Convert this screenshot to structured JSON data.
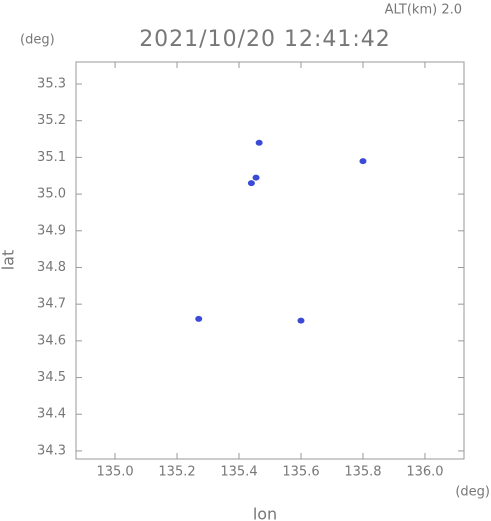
{
  "chart_data": {
    "type": "scatter",
    "title": "2021/10/20 12:41:42",
    "annotation": "ALT(km) 2.0",
    "y_unit": "(deg)",
    "x_unit": "(deg)",
    "xlabel": "lon",
    "ylabel": "lat",
    "color": "#3a4ad6",
    "x": [
      135.465,
      135.455,
      135.44,
      135.8,
      135.27,
      135.6
    ],
    "values": [
      35.14,
      35.045,
      35.03,
      35.09,
      34.66,
      34.655
    ],
    "xlim": [
      134.874,
      136.126
    ],
    "ylim": [
      34.278,
      35.36
    ],
    "xticks": [
      {
        "value": 135.0,
        "label": "135.0"
      },
      135.2,
      135.4,
      135.6,
      135.8,
      {
        "value": 136.0,
        "label": "136.0"
      }
    ],
    "yticks": [
      35.3,
      35.2,
      35.1,
      {
        "value": 35.0,
        "label": "35.0"
      },
      34.9,
      34.8,
      34.7,
      34.6,
      34.5,
      34.4,
      34.3
    ],
    "grid": false
  }
}
